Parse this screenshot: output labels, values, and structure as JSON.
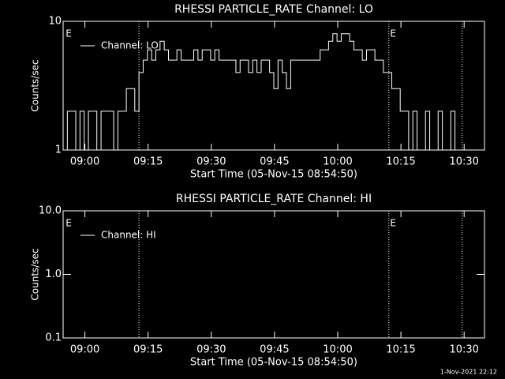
{
  "chart_data": [
    {
      "type": "line",
      "title": "RHESSI PARTICLE_RATE Channel: LO",
      "xlabel": "Start Time (05-Nov-15 08:54:50)",
      "ylabel": "Counts/sec",
      "xlim": [
        0,
        100
      ],
      "xticks": [
        {
          "value": 5.17,
          "label": "09:00"
        },
        {
          "value": 20.17,
          "label": "09:15"
        },
        {
          "value": 35.17,
          "label": "09:30"
        },
        {
          "value": 50.17,
          "label": "09:45"
        },
        {
          "value": 65.17,
          "label": "10:00"
        },
        {
          "value": 80.17,
          "label": "10:15"
        },
        {
          "value": 95.17,
          "label": "10:30"
        }
      ],
      "ylim": [
        1,
        10
      ],
      "yticks": [
        1,
        10
      ],
      "log_y": true,
      "legend": "upper left",
      "vlines": [
        18,
        77.3,
        94.7
      ],
      "flags": [
        {
          "x": 0.6,
          "label": "E"
        },
        {
          "x": 77.6,
          "label": "E"
        }
      ],
      "series": [
        {
          "name": "Channel: LO",
          "color": "#ffffff",
          "x": [
            0,
            1,
            2,
            3,
            4,
            5,
            6,
            7,
            8,
            9,
            10,
            11,
            12,
            13,
            14,
            15,
            16,
            17,
            18,
            19,
            20,
            21,
            22,
            23,
            24,
            25,
            26,
            27,
            28,
            29,
            30,
            31,
            32,
            33,
            34,
            35,
            36,
            37,
            38,
            39,
            40,
            41,
            42,
            43,
            44,
            45,
            46,
            47,
            48,
            49,
            50,
            51,
            52,
            53,
            54,
            55,
            56,
            57,
            58,
            59,
            60,
            61,
            62,
            63,
            64,
            65,
            66,
            67,
            68,
            69,
            70,
            71,
            72,
            73,
            74,
            75,
            76,
            77,
            78,
            79,
            80,
            81,
            82,
            83,
            84,
            85,
            86,
            87,
            88,
            89,
            90,
            91,
            92,
            93,
            94
          ],
          "values": [
            1,
            2,
            2,
            1,
            2,
            1,
            2,
            2,
            1,
            2,
            2,
            2,
            1,
            2,
            2,
            3,
            3,
            2,
            4,
            5,
            6,
            5,
            6,
            7,
            6,
            5,
            5,
            6,
            5,
            5,
            5,
            6,
            5,
            6,
            6,
            5,
            6,
            5,
            5,
            5,
            5,
            4,
            5,
            5,
            4,
            5,
            4,
            5,
            5,
            4,
            3,
            5,
            4,
            3,
            5,
            5,
            5,
            5,
            5,
            5,
            5,
            6,
            6,
            7,
            8,
            7,
            8,
            8,
            7,
            6,
            6,
            5,
            6,
            6,
            5,
            5,
            4,
            4,
            3,
            3,
            2,
            2,
            1,
            2,
            1,
            1,
            2,
            1,
            1,
            2,
            1,
            1,
            2,
            1,
            1
          ]
        }
      ]
    },
    {
      "type": "line",
      "title": "RHESSI PARTICLE_RATE Channel: HI",
      "xlabel": "Start Time (05-Nov-15 08:54:50)",
      "ylabel": "Counts/sec",
      "xlim": [
        0,
        100
      ],
      "xticks": [
        {
          "value": 5.17,
          "label": "09:00"
        },
        {
          "value": 20.17,
          "label": "09:15"
        },
        {
          "value": 35.17,
          "label": "09:30"
        },
        {
          "value": 50.17,
          "label": "09:45"
        },
        {
          "value": 65.17,
          "label": "10:00"
        },
        {
          "value": 80.17,
          "label": "10:15"
        },
        {
          "value": 95.17,
          "label": "10:30"
        }
      ],
      "ylim": [
        0.1,
        10
      ],
      "yticks": [
        0.1,
        {
          "value": 1,
          "label": "1.0"
        },
        {
          "value": 10,
          "label": "10.0"
        }
      ],
      "log_y": true,
      "legend": "upper left",
      "vlines": [
        18,
        77.3,
        94.7
      ],
      "flags": [
        {
          "x": 0.6,
          "label": "E"
        },
        {
          "x": 77.6,
          "label": "E"
        }
      ],
      "series": [
        {
          "name": "Channel: HI",
          "color": "#ffffff",
          "x": [],
          "values": []
        }
      ]
    }
  ],
  "footer": "1-Nov-2021 22:12"
}
